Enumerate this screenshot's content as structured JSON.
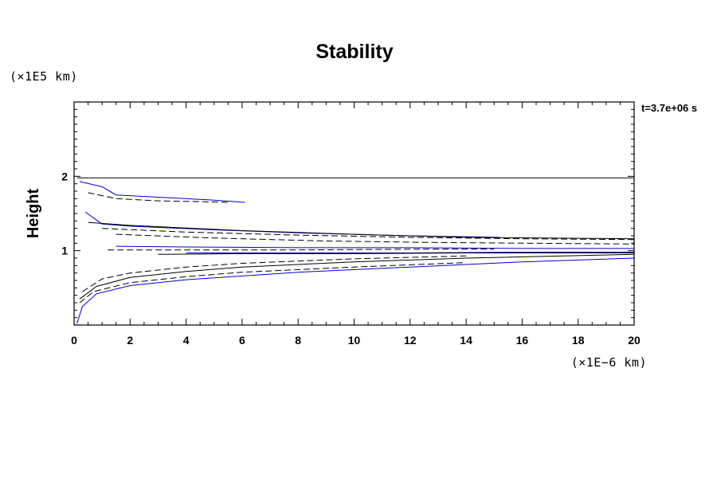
{
  "chart_data": {
    "type": "line",
    "title": "Stability",
    "ylabel": "Height",
    "xlabel": "",
    "x_unit_label": "(×1E−6 km)",
    "y_unit_label": "(×1E5 km)",
    "time_label": "t=3.7e+06 s",
    "xlim": [
      0,
      20
    ],
    "ylim": [
      0,
      3
    ],
    "x_ticks": [
      "0",
      "2",
      "4",
      "6",
      "8",
      "10",
      "12",
      "14",
      "16",
      "18",
      "20"
    ],
    "y_ticks": [
      "1",
      "2"
    ],
    "grid": false,
    "colors": {
      "blue": "#0000cc",
      "black": "#000000"
    },
    "series": [
      {
        "style": "solid",
        "color": "#000000",
        "x": [
          0.1,
          2,
          6,
          10,
          14,
          20
        ],
        "y": [
          1.98,
          1.98,
          1.98,
          1.98,
          1.98,
          1.98
        ]
      },
      {
        "style": "solid",
        "color": "#0000cc",
        "x": [
          0.2,
          1,
          1.5,
          3,
          5,
          6.1
        ],
        "y": [
          1.93,
          1.86,
          1.75,
          1.72,
          1.68,
          1.65
        ]
      },
      {
        "style": "dashed",
        "color": "#000000",
        "x": [
          0.5,
          1.5,
          3,
          4.5,
          5.5
        ],
        "y": [
          1.78,
          1.7,
          1.67,
          1.66,
          1.65
        ]
      },
      {
        "style": "solid",
        "color": "#0000cc",
        "x": [
          0.4,
          1,
          2,
          5,
          8,
          12,
          15.2
        ],
        "y": [
          1.52,
          1.36,
          1.33,
          1.28,
          1.24,
          1.2,
          1.18
        ]
      },
      {
        "style": "solid",
        "color": "#000000",
        "x": [
          0.5,
          2,
          6,
          10,
          14,
          20
        ],
        "y": [
          1.38,
          1.34,
          1.27,
          1.22,
          1.18,
          1.16
        ]
      },
      {
        "style": "dashed",
        "color": "#000000",
        "x": [
          1,
          4,
          8,
          12,
          16,
          20
        ],
        "y": [
          1.3,
          1.25,
          1.21,
          1.18,
          1.16,
          1.15
        ]
      },
      {
        "style": "dashed",
        "color": "#000000",
        "x": [
          1.5,
          5,
          9,
          13,
          20
        ],
        "y": [
          1.22,
          1.17,
          1.13,
          1.11,
          1.09
        ]
      },
      {
        "style": "solid",
        "color": "#0000cc",
        "x": [
          1.5,
          4,
          8,
          12,
          16,
          20
        ],
        "y": [
          1.06,
          1.05,
          1.04,
          1.04,
          1.03,
          1.03
        ]
      },
      {
        "style": "dashed",
        "color": "#000000",
        "x": [
          1.2,
          4,
          8,
          12,
          15
        ],
        "y": [
          1.01,
          1.01,
          1.01,
          1.02,
          1.02
        ]
      },
      {
        "style": "solid",
        "color": "#0000cc",
        "x": [
          4,
          8,
          12,
          16,
          20
        ],
        "y": [
          0.97,
          0.97,
          0.97,
          0.98,
          0.98
        ]
      },
      {
        "style": "solid",
        "color": "#000000",
        "x": [
          3,
          6,
          10,
          14,
          20
        ],
        "y": [
          0.95,
          0.96,
          0.96,
          0.97,
          0.97
        ]
      },
      {
        "style": "dashed",
        "color": "#000000",
        "x": [
          0.3,
          1,
          2,
          4,
          6,
          10,
          14
        ],
        "y": [
          0.45,
          0.62,
          0.7,
          0.78,
          0.83,
          0.89,
          0.93
        ]
      },
      {
        "style": "solid",
        "color": "#000000",
        "x": [
          0.2,
          0.8,
          2,
          4,
          6,
          10,
          14,
          20
        ],
        "y": [
          0.35,
          0.52,
          0.64,
          0.72,
          0.78,
          0.85,
          0.9,
          0.95
        ]
      },
      {
        "style": "dashed",
        "color": "#000000",
        "x": [
          0.2,
          0.7,
          2,
          4,
          6,
          10,
          14
        ],
        "y": [
          0.3,
          0.45,
          0.57,
          0.65,
          0.71,
          0.78,
          0.84
        ]
      },
      {
        "style": "solid",
        "color": "#0000cc",
        "x": [
          0.1,
          0.3,
          0.8,
          2,
          4,
          8,
          12,
          16,
          20
        ],
        "y": [
          0.02,
          0.25,
          0.42,
          0.53,
          0.61,
          0.71,
          0.78,
          0.85,
          0.9
        ]
      }
    ]
  }
}
